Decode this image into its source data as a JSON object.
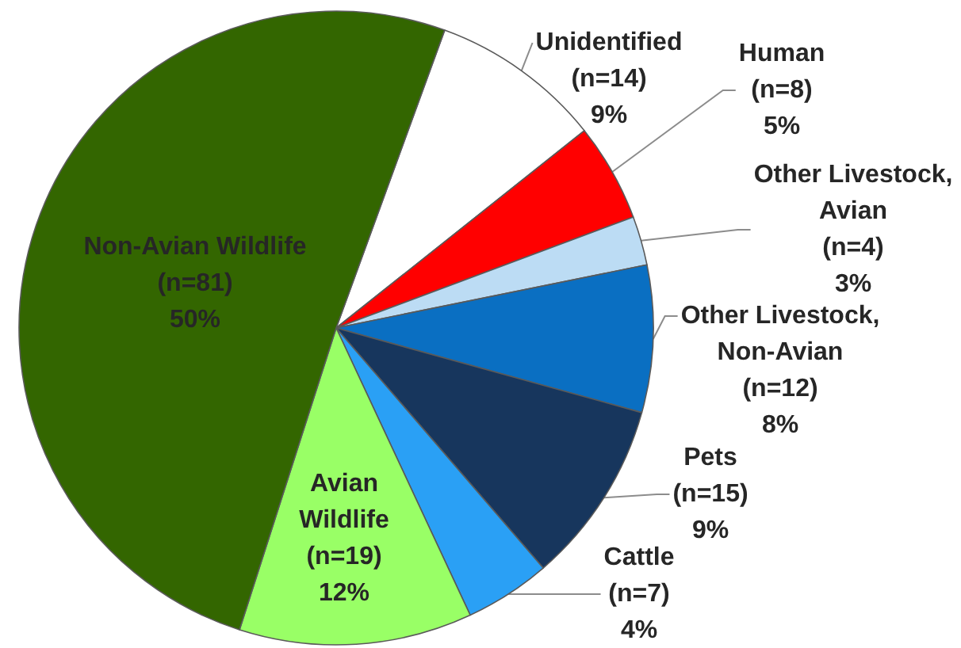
{
  "chart_data": {
    "type": "pie",
    "categories": [
      "Unidentified",
      "Human",
      "Other Livestock, Avian",
      "Other Livestock, Non-Avian",
      "Pets",
      "Cattle",
      "Avian Wildlife",
      "Non-Avian Wildlife"
    ],
    "values": [
      14,
      8,
      4,
      12,
      15,
      7,
      19,
      81
    ],
    "colors": [
      "#ffffff",
      "#ff0000",
      "#bcdcf4",
      "#0a6fc2",
      "#17365d",
      "#2aa0f5",
      "#99ff66",
      "#336600"
    ],
    "value_labels": [
      "(n=14)\n9%",
      "(n=8)\n5%",
      "(n=4)\n3%",
      "(n=12)\n8%",
      "(n=15)\n9%",
      "(n=7)\n4%",
      "(n=19)\n12%",
      "(n=81)\n50%"
    ]
  }
}
